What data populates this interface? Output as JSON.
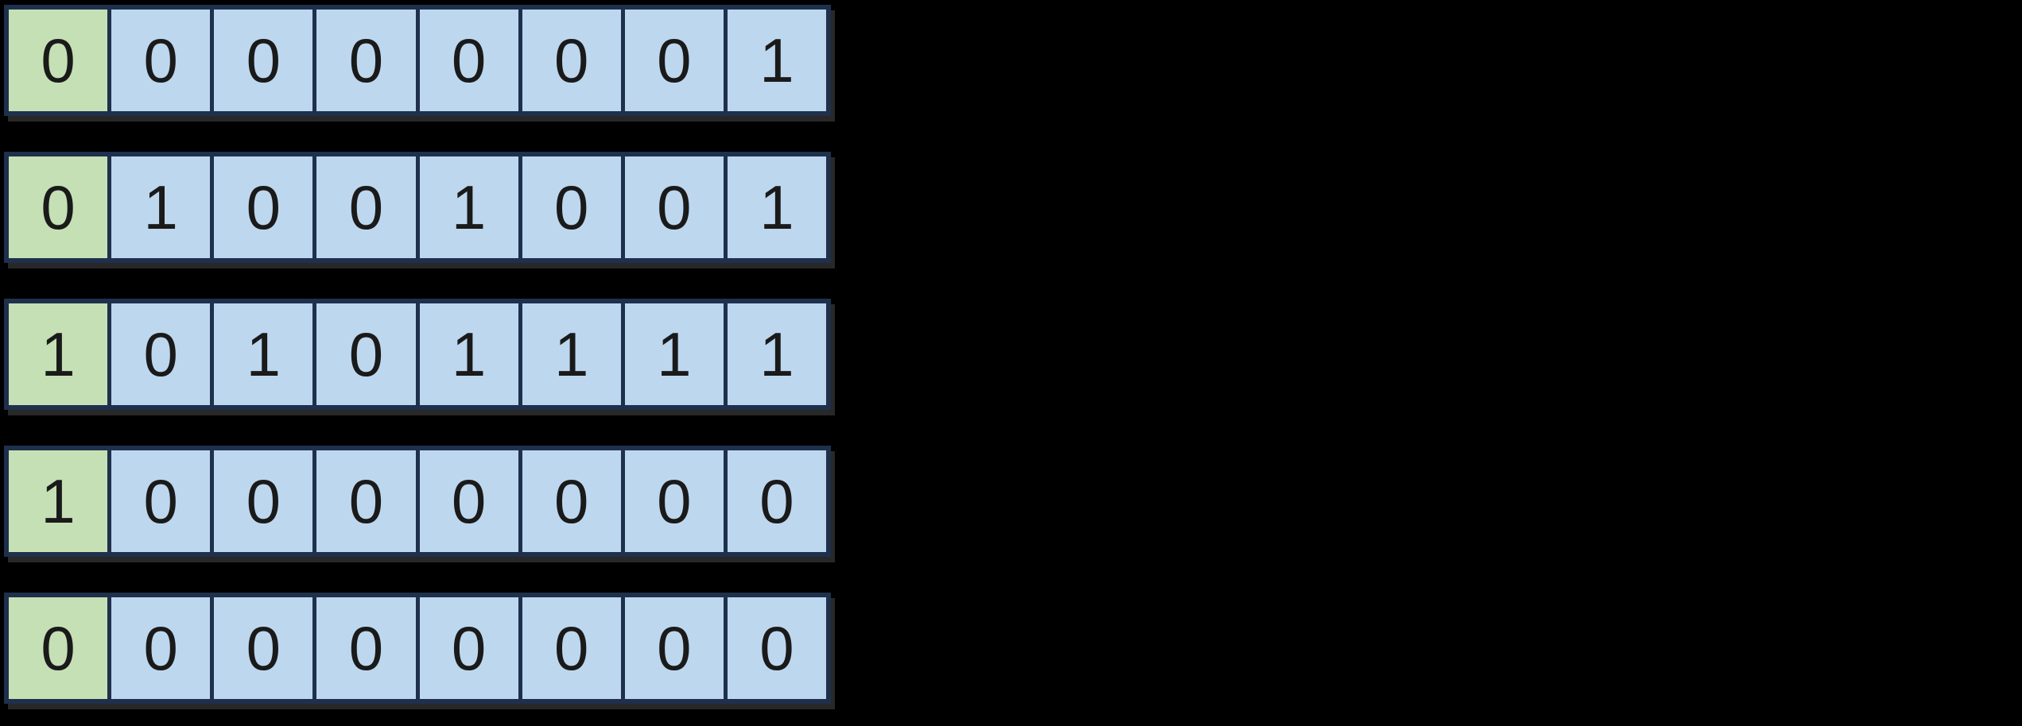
{
  "canvas": {
    "background": "#000000"
  },
  "colors": {
    "flag_cell_fill": "#c5e0b4",
    "bit_cell_fill": "#bdd7ee",
    "cell_border": "#1e304c",
    "digit_text": "#1a1a1a",
    "row_shadow": "#282828"
  },
  "bit_arrays": {
    "rows": [
      {
        "bits": [
          "0",
          "0",
          "0",
          "0",
          "0",
          "0",
          "0",
          "1"
        ]
      },
      {
        "bits": [
          "0",
          "1",
          "0",
          "0",
          "1",
          "0",
          "0",
          "1"
        ]
      },
      {
        "bits": [
          "1",
          "0",
          "1",
          "0",
          "1",
          "1",
          "1",
          "1"
        ]
      },
      {
        "bits": [
          "1",
          "0",
          "0",
          "0",
          "0",
          "0",
          "0",
          "0"
        ]
      },
      {
        "bits": [
          "0",
          "0",
          "0",
          "0",
          "0",
          "0",
          "0",
          "0"
        ]
      }
    ]
  }
}
